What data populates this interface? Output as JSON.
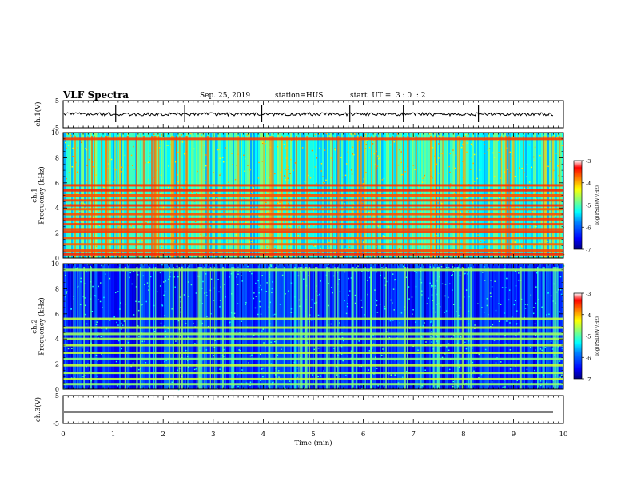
{
  "header": {
    "title": "VLF Spectra",
    "date": "Sep. 25, 2019",
    "station": "station=HUS",
    "start": "start  UT =  3 : 0  : 2"
  },
  "colors": {
    "frame": "#000000",
    "colormap": [
      "#000080",
      "#0000ff",
      "#0080ff",
      "#00ffff",
      "#80ff80",
      "#ffff00",
      "#ff8000",
      "#ff0000",
      "#ffffff"
    ]
  },
  "chart_data": [
    {
      "type": "line",
      "panel": "ch1-waveform",
      "ylabel": "ch.1(V)",
      "yticks": [
        "5",
        "-5"
      ],
      "ylim": [
        -5,
        5
      ],
      "trace_description_level_V": 0.0,
      "spikes_min": [
        1.05,
        2.43,
        3.97,
        5.73,
        6.8,
        8.3
      ],
      "xlim": [
        0,
        10
      ]
    },
    {
      "type": "heatmap",
      "panel": "ch1-spectrogram",
      "ylabel": "ch.1\nFrequency (kHz)",
      "yticks": [
        "0",
        "2",
        "4",
        "6",
        "8",
        "10"
      ],
      "ylim": [
        0,
        10
      ],
      "xlim": [
        0,
        10
      ],
      "log_psd_range": [
        -7,
        -3
      ],
      "colorbar_label": "log(PSD)(V²/Hz)",
      "colorbar_ticks": [
        "-3",
        "-4",
        "-5",
        "-6",
        "-7"
      ],
      "bands_khz": [
        0.3,
        0.6,
        1.1,
        1.6,
        2.1,
        2.3,
        2.7,
        3.1,
        3.5,
        3.9,
        4.2,
        4.6,
        5.0,
        5.4,
        5.8,
        9.5
      ],
      "background_level": -5.2
    },
    {
      "type": "heatmap",
      "panel": "ch2-spectrogram",
      "ylabel": "ch.2\nFrequency (kHz)",
      "yticks": [
        "0",
        "2",
        "4",
        "6",
        "8",
        "10"
      ],
      "ylim": [
        0,
        10
      ],
      "xlim": [
        0,
        10
      ],
      "log_psd_range": [
        -7,
        -3
      ],
      "colorbar_label": "log(PSD)(V²/Hz)",
      "colorbar_ticks": [
        "-3",
        "-4",
        "-5",
        "-6",
        "-7"
      ],
      "bands_khz": [
        0.4,
        0.8,
        1.3,
        1.9,
        2.4,
        2.9,
        3.5,
        4.0,
        4.4,
        4.9,
        5.6,
        9.5
      ],
      "background_level": -6.3
    },
    {
      "type": "line",
      "panel": "ch3-waveform",
      "ylabel": "ch.3(V)",
      "yticks": [
        "5",
        "-5"
      ],
      "ylim": [
        -5,
        5
      ],
      "trace_level_V": -1.0,
      "xlim": [
        0,
        10
      ],
      "xlabel": "Time  (min)",
      "xticks": [
        "0",
        "1",
        "2",
        "3",
        "4",
        "5",
        "6",
        "7",
        "8",
        "9",
        "10"
      ]
    }
  ]
}
